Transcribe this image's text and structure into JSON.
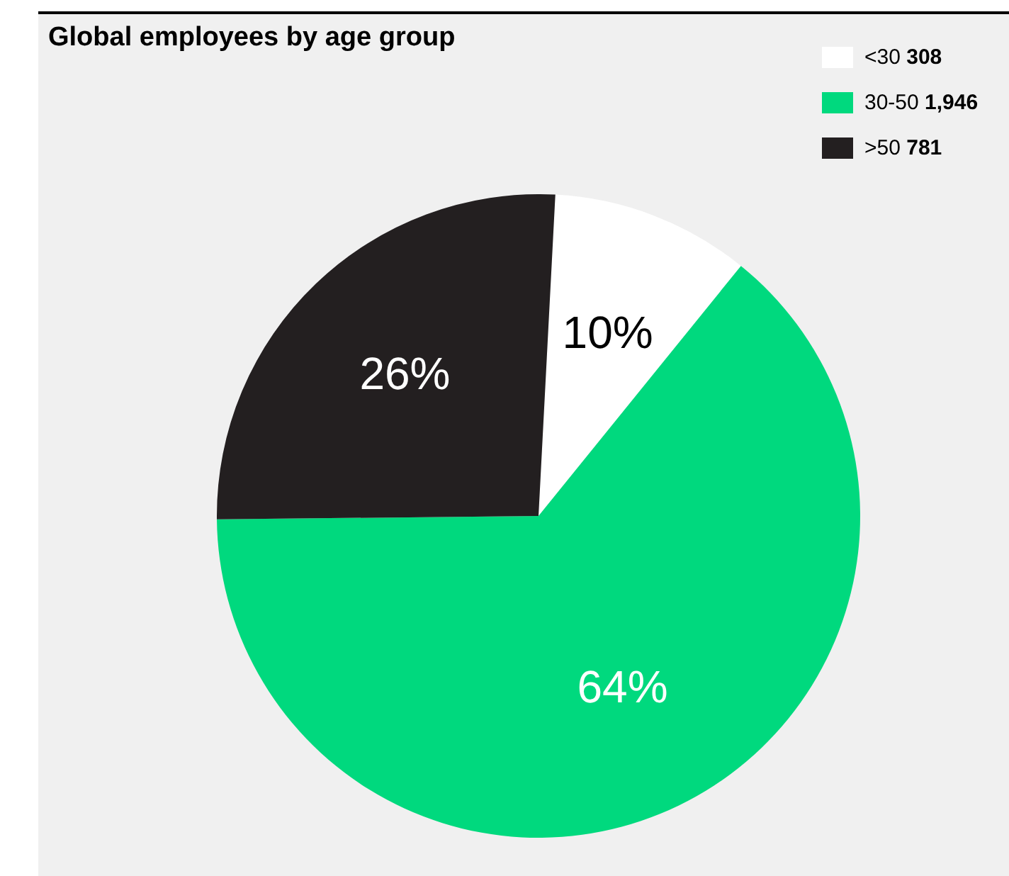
{
  "chart_data": {
    "type": "pie",
    "title": "Global employees by age group",
    "categories": [
      "<30 308",
      "30-50 1,946",
      ">50 781"
    ],
    "values": [
      10,
      64,
      26
    ],
    "colors": [
      "#ffffff",
      "#00d97e",
      "#231f20"
    ],
    "value_labels": [
      "10%",
      "64%",
      "26%"
    ],
    "legend": "top right"
  }
}
